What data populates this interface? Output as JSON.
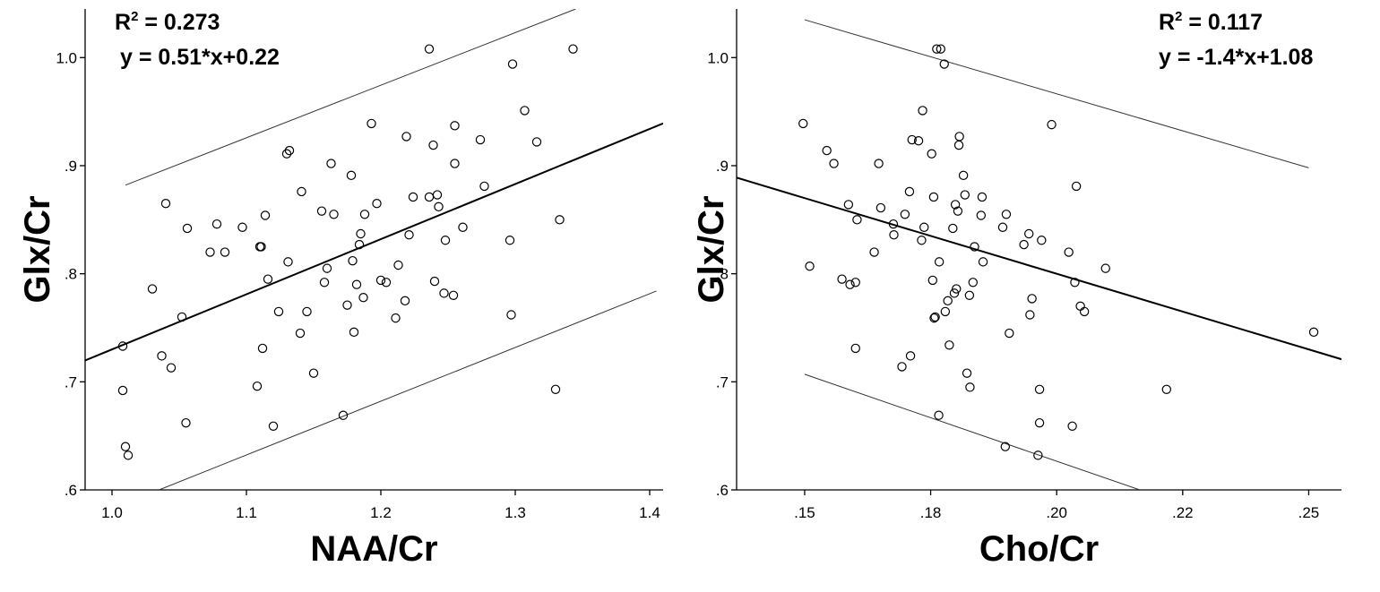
{
  "chart_data": [
    {
      "type": "scatter",
      "xlabel": "NAA/Cr",
      "ylabel": "Glx/Cr",
      "xlim": [
        0.98,
        1.41
      ],
      "ylim": [
        0.6,
        1.045
      ],
      "x_ticks": [
        1.0,
        1.1,
        1.2,
        1.3,
        1.4
      ],
      "x_tick_labels": [
        "1.0",
        "1.1",
        "1.2",
        "1.3",
        "1.4"
      ],
      "y_ticks": [
        0.6,
        0.7,
        0.8,
        0.9,
        1.0
      ],
      "y_tick_labels": [
        ".6",
        ".7",
        ".8",
        ".9",
        "1.0"
      ],
      "annotation": {
        "r2_prefix": "R",
        "r2_sup": "2",
        "r2_value": " = 0.273",
        "equation": "y = 0.51*x+0.22"
      },
      "fit_line": {
        "slope": 0.51,
        "intercept": 0.22,
        "x_range": [
          0.98,
          1.41
        ]
      },
      "prediction_interval": {
        "upper": [
          [
            1.01,
            0.882
          ],
          [
            1.345,
            1.045
          ]
        ],
        "lower": [
          [
            1.035,
            0.6
          ],
          [
            1.405,
            0.784
          ]
        ]
      },
      "points": [
        [
          1.008,
          0.733
        ],
        [
          1.008,
          0.692
        ],
        [
          1.01,
          0.64
        ],
        [
          1.012,
          0.632
        ],
        [
          1.03,
          0.786
        ],
        [
          1.037,
          0.724
        ],
        [
          1.04,
          0.865
        ],
        [
          1.044,
          0.713
        ],
        [
          1.052,
          0.76
        ],
        [
          1.055,
          0.662
        ],
        [
          1.056,
          0.842
        ],
        [
          1.073,
          0.82
        ],
        [
          1.078,
          0.846
        ],
        [
          1.084,
          0.82
        ],
        [
          1.097,
          0.843
        ],
        [
          1.108,
          0.696
        ],
        [
          1.11,
          0.825
        ],
        [
          1.111,
          0.825
        ],
        [
          1.112,
          0.731
        ],
        [
          1.114,
          0.854
        ],
        [
          1.116,
          0.795
        ],
        [
          1.12,
          0.659
        ],
        [
          1.124,
          0.765
        ],
        [
          1.13,
          0.911
        ],
        [
          1.131,
          0.811
        ],
        [
          1.132,
          0.914
        ],
        [
          1.14,
          0.745
        ],
        [
          1.141,
          0.876
        ],
        [
          1.145,
          0.765
        ],
        [
          1.15,
          0.708
        ],
        [
          1.156,
          0.858
        ],
        [
          1.158,
          0.792
        ],
        [
          1.16,
          0.805
        ],
        [
          1.163,
          0.902
        ],
        [
          1.165,
          0.855
        ],
        [
          1.172,
          0.669
        ],
        [
          1.175,
          0.771
        ],
        [
          1.178,
          0.891
        ],
        [
          1.179,
          0.812
        ],
        [
          1.18,
          0.746
        ],
        [
          1.182,
          0.79
        ],
        [
          1.184,
          0.827
        ],
        [
          1.185,
          0.837
        ],
        [
          1.187,
          0.778
        ],
        [
          1.188,
          0.855
        ],
        [
          1.193,
          0.939
        ],
        [
          1.197,
          0.865
        ],
        [
          1.2,
          0.794
        ],
        [
          1.204,
          0.792
        ],
        [
          1.211,
          0.759
        ],
        [
          1.213,
          0.808
        ],
        [
          1.218,
          0.775
        ],
        [
          1.219,
          0.927
        ],
        [
          1.221,
          0.836
        ],
        [
          1.224,
          0.871
        ],
        [
          1.236,
          1.008
        ],
        [
          1.236,
          0.871
        ],
        [
          1.239,
          0.919
        ],
        [
          1.24,
          0.793
        ],
        [
          1.242,
          0.873
        ],
        [
          1.243,
          0.862
        ],
        [
          1.247,
          0.782
        ],
        [
          1.248,
          0.831
        ],
        [
          1.254,
          0.78
        ],
        [
          1.255,
          0.937
        ],
        [
          1.255,
          0.902
        ],
        [
          1.261,
          0.843
        ],
        [
          1.274,
          0.924
        ],
        [
          1.277,
          0.881
        ],
        [
          1.296,
          0.831
        ],
        [
          1.297,
          0.762
        ],
        [
          1.298,
          0.994
        ],
        [
          1.307,
          0.951
        ],
        [
          1.316,
          0.922
        ],
        [
          1.33,
          0.693
        ],
        [
          1.333,
          0.85
        ],
        [
          1.343,
          1.008
        ]
      ]
    },
    {
      "type": "scatter",
      "xlabel": "Cho/Cr",
      "ylabel": "Glx/Cr",
      "xlim": [
        0.1365,
        0.2565
      ],
      "ylim": [
        0.6,
        1.045
      ],
      "x_ticks": [
        0.15,
        0.175,
        0.2,
        0.225,
        0.25
      ],
      "x_tick_labels": [
        ".15",
        ".18",
        ".20",
        ".22",
        ".25"
      ],
      "y_ticks": [
        0.6,
        0.7,
        0.8,
        0.9,
        1.0
      ],
      "y_tick_labels": [
        ".6",
        ".7",
        ".8",
        ".9",
        "1.0"
      ],
      "annotation": {
        "r2_prefix": "R",
        "r2_sup": "2",
        "r2_value": " = 0.117",
        "equation": "y = -1.4*x+1.08"
      },
      "fit_line": {
        "slope": -1.4,
        "intercept": 1.08,
        "x_range": [
          0.1365,
          0.2565
        ]
      },
      "prediction_interval": {
        "upper": [
          [
            0.15,
            1.035
          ],
          [
            0.25,
            0.898
          ]
        ],
        "lower": [
          [
            0.15,
            0.707
          ],
          [
            0.2165,
            0.6
          ]
        ]
      },
      "points": [
        [
          0.1497,
          0.939
        ],
        [
          0.151,
          0.807
        ],
        [
          0.1544,
          0.914
        ],
        [
          0.1558,
          0.902
        ],
        [
          0.1574,
          0.795
        ],
        [
          0.1587,
          0.864
        ],
        [
          0.159,
          0.79
        ],
        [
          0.1601,
          0.792
        ],
        [
          0.1601,
          0.731
        ],
        [
          0.1604,
          0.85
        ],
        [
          0.1638,
          0.82
        ],
        [
          0.1647,
          0.902
        ],
        [
          0.1651,
          0.861
        ],
        [
          0.1676,
          0.846
        ],
        [
          0.1677,
          0.836
        ],
        [
          0.1693,
          0.714
        ],
        [
          0.1699,
          0.855
        ],
        [
          0.1708,
          0.876
        ],
        [
          0.171,
          0.724
        ],
        [
          0.1713,
          0.924
        ],
        [
          0.1726,
          0.923
        ],
        [
          0.1732,
          0.831
        ],
        [
          0.1734,
          0.951
        ],
        [
          0.1737,
          0.843
        ],
        [
          0.1752,
          0.911
        ],
        [
          0.1754,
          0.794
        ],
        [
          0.1756,
          0.871
        ],
        [
          0.1757,
          0.759
        ],
        [
          0.1759,
          0.76
        ],
        [
          0.1762,
          1.008
        ],
        [
          0.1766,
          0.669
        ],
        [
          0.1767,
          0.811
        ],
        [
          0.177,
          1.008
        ],
        [
          0.1777,
          0.994
        ],
        [
          0.1779,
          0.765
        ],
        [
          0.1784,
          0.775
        ],
        [
          0.1787,
          0.734
        ],
        [
          0.1794,
          0.842
        ],
        [
          0.1797,
          0.782
        ],
        [
          0.1799,
          0.864
        ],
        [
          0.1801,
          0.786
        ],
        [
          0.1804,
          0.858
        ],
        [
          0.1806,
          0.919
        ],
        [
          0.1807,
          0.927
        ],
        [
          0.1815,
          0.891
        ],
        [
          0.1818,
          0.873
        ],
        [
          0.1822,
          0.708
        ],
        [
          0.1827,
          0.78
        ],
        [
          0.1828,
          0.695
        ],
        [
          0.1834,
          0.792
        ],
        [
          0.1837,
          0.825
        ],
        [
          0.185,
          0.854
        ],
        [
          0.1852,
          0.871
        ],
        [
          0.1854,
          0.811
        ],
        [
          0.1893,
          0.843
        ],
        [
          0.1898,
          0.64
        ],
        [
          0.19,
          0.855
        ],
        [
          0.1906,
          0.745
        ],
        [
          0.1935,
          0.827
        ],
        [
          0.1945,
          0.837
        ],
        [
          0.1947,
          0.762
        ],
        [
          0.1951,
          0.777
        ],
        [
          0.1963,
          0.632
        ],
        [
          0.1966,
          0.693
        ],
        [
          0.1966,
          0.662
        ],
        [
          0.197,
          0.831
        ],
        [
          0.199,
          0.938
        ],
        [
          0.2024,
          0.82
        ],
        [
          0.2031,
          0.659
        ],
        [
          0.2036,
          0.792
        ],
        [
          0.2039,
          0.881
        ],
        [
          0.2047,
          0.77
        ],
        [
          0.2055,
          0.765
        ],
        [
          0.2097,
          0.805
        ],
        [
          0.2218,
          0.693
        ],
        [
          0.251,
          0.746
        ]
      ]
    }
  ]
}
